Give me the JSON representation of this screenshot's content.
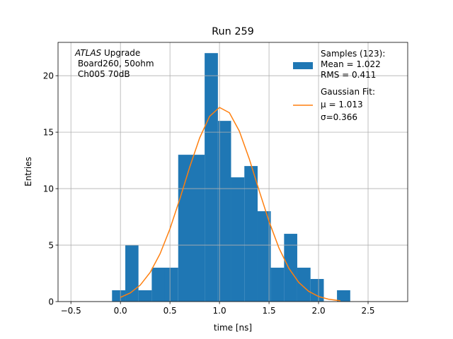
{
  "chart_data": {
    "type": "histogram",
    "title": "Run 259",
    "xlabel": "time [ns]",
    "ylabel": "Entries",
    "annotation": {
      "italic": "ATLAS",
      "lines": [
        " Upgrade",
        " Board260, 50ohm",
        " Ch005 70dB"
      ]
    },
    "bins": [
      -0.085,
      0.049,
      0.182,
      0.316,
      0.449,
      0.583,
      0.717,
      0.85,
      0.984,
      1.117,
      1.251,
      1.385,
      1.518,
      1.652,
      1.785,
      1.919,
      2.053,
      2.186,
      2.32
    ],
    "counts": [
      1,
      5,
      1,
      3,
      3,
      13,
      13,
      22,
      16,
      11,
      12,
      8,
      3,
      6,
      3,
      2,
      0,
      1
    ],
    "color": "#1f77b4",
    "hist_legend": [
      "Samples (123):",
      " Mean = 1.022",
      " RMS = 0.411"
    ],
    "series": [
      {
        "name": [
          "Gaussian Fit:",
          " μ = 1.013",
          " σ=0.366"
        ],
        "color": "#ff7f0e",
        "x": [
          0,
          0.1,
          0.2,
          0.3,
          0.4,
          0.5,
          0.6,
          0.7,
          0.8,
          0.9,
          1.0,
          1.1,
          1.2,
          1.3,
          1.4,
          1.5,
          1.6,
          1.7,
          1.8,
          1.9,
          2.0,
          2.1,
          2.22
        ],
        "values": [
          0.37,
          0.77,
          1.46,
          2.58,
          4.23,
          6.44,
          9.1,
          11.93,
          14.5,
          16.4,
          17.19,
          16.72,
          15.1,
          12.65,
          9.83,
          7.1,
          4.75,
          2.95,
          1.7,
          0.91,
          0.45,
          0.21,
          0.07
        ]
      }
    ],
    "xlim": [
      -0.63,
      2.9
    ],
    "ylim": [
      0,
      22.95
    ],
    "xticks": [
      {
        "value": -0.5,
        "label": "−0.5"
      },
      {
        "value": 0,
        "label": "0.0"
      },
      0.5,
      {
        "value": 1,
        "label": "1.0"
      },
      1.5,
      {
        "value": 2,
        "label": "2.0"
      },
      2.5
    ],
    "yticks": [
      0,
      5,
      10,
      15,
      20
    ],
    "grid": true,
    "legend": "upper right"
  }
}
